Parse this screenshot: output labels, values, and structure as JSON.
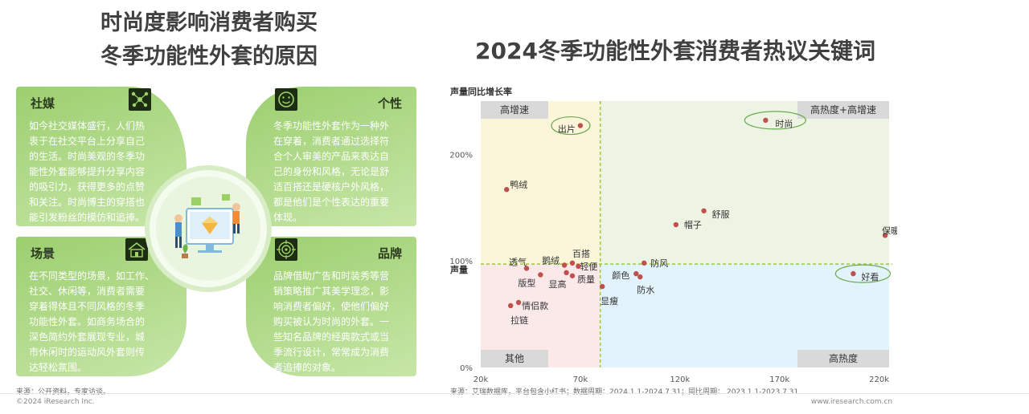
{
  "left_title": {
    "line1": "时尚度影响消费者购买",
    "line2": "冬季功能性外套的原因"
  },
  "quadrants": {
    "social": {
      "title": "社媒",
      "icon": "network-icon",
      "lines": [
        "如今社交媒体盛行，人们热",
        "衷于在社交平台上分享自己",
        "的生活。时尚美观的冬季功",
        "能性外套能够提升分享内容",
        "的吸引力，获得更多的点赞",
        "和关注。时尚博主的穿搭也",
        "能引发粉丝的模仿和追捧。"
      ]
    },
    "personality": {
      "title": "个性",
      "icon": "smiley-icon",
      "lines": [
        "冬季功能性外套作为一种外",
        "在穿着，消费者通过选择符",
        "合个人审美的产品来表达自",
        "己的身份和风格，无论是舒",
        "适百搭还是硬核户外风格，",
        "都是他们是个性表达的重要",
        "体现。"
      ]
    },
    "scene": {
      "title": "场景",
      "icon": "house-icon",
      "lines": [
        "在不同类型的场景，如工作、",
        "社交、休闲等，消费者需要",
        "穿着得体且不同风格的冬季",
        "功能性外套。如商务场合的",
        "深色简约外套展现专业，城",
        "市休闲时的运动风外套则传",
        "达轻松氛围。"
      ]
    },
    "brand": {
      "title": "品牌",
      "icon": "target-icon",
      "lines": [
        "品牌借助广告和时装秀等营",
        "销策略推广其美学理念，影",
        "响消费者偏好，使他们偏好",
        "购买被认为时尚的外套。一",
        "些知名品牌的经典款式或当",
        "季流行设计，常常成为消费",
        "者追捧的对象。"
      ]
    }
  },
  "left_source": "来源：公开资料，专家访谈。",
  "chart_data": {
    "type": "scatter",
    "title": "2024冬季功能性外套消费者热议关键词",
    "ylabel": "声量同比增长率",
    "xlabel": "声量",
    "x_ticks": [
      "20k",
      "70k",
      "120k",
      "170k",
      "220k"
    ],
    "y_ticks": [
      "0%",
      "100%",
      "200%"
    ],
    "xlim": [
      20000,
      225000
    ],
    "ylim": [
      0,
      250
    ],
    "x_divider": 80000,
    "y_divider": 97,
    "quadrant_labels": {
      "top_left": "高增速",
      "top_right": "高热度+高增速",
      "bottom_left": "其他",
      "bottom_right": "高热度"
    },
    "quadrant_colors": {
      "top_left": "#fbf6d9",
      "top_right": "#eef4e4",
      "bottom_left": "#fbe9ea",
      "bottom_right": "#e2f3fb"
    },
    "divider_color": "#9bc83a",
    "point_color": "#c0504d",
    "highlight_color": "#6aa84f",
    "points": [
      {
        "label": "出片",
        "x": 70000,
        "y": 227,
        "highlight": true
      },
      {
        "label": "时尚",
        "x": 163000,
        "y": 232,
        "highlight": true
      },
      {
        "label": "鸭绒",
        "x": 33000,
        "y": 167
      },
      {
        "label": "舒服",
        "x": 132000,
        "y": 147
      },
      {
        "label": "帽子",
        "x": 118000,
        "y": 134
      },
      {
        "label": "保暖",
        "x": 223000,
        "y": 124
      },
      {
        "label": "透气",
        "x": 43000,
        "y": 93
      },
      {
        "label": "鹅绒",
        "x": 62000,
        "y": 96
      },
      {
        "label": "百搭",
        "x": 66000,
        "y": 98
      },
      {
        "label": "轻便",
        "x": 69000,
        "y": 95
      },
      {
        "label": "防风",
        "x": 102000,
        "y": 98
      },
      {
        "label": "版型",
        "x": 50000,
        "y": 87
      },
      {
        "label": "显高",
        "x": 63000,
        "y": 89
      },
      {
        "label": "质量",
        "x": 66000,
        "y": 86
      },
      {
        "label": "颜色",
        "x": 98000,
        "y": 88
      },
      {
        "label": "防水",
        "x": 100000,
        "y": 85
      },
      {
        "label": "好看",
        "x": 207000,
        "y": 88,
        "highlight": true
      },
      {
        "label": "显瘦",
        "x": 81000,
        "y": 76
      },
      {
        "label": "情侣款",
        "x": 39000,
        "y": 61
      },
      {
        "label": "拉链",
        "x": 35000,
        "y": 58
      }
    ],
    "source": "来源：艾瑞数据库，平台包含小红书；数据周期：2024.1.1-2024.7.31；同比周期： 2023.1.1-2023.7.31"
  },
  "footer_left": "©2024 iResearch Inc.",
  "footer_right": "www.iresearch.com.cn"
}
